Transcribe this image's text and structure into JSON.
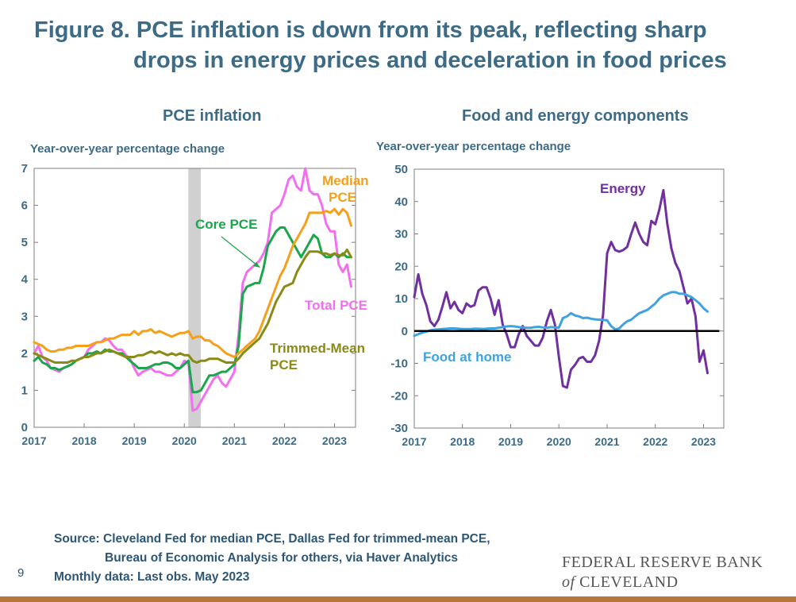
{
  "title": {
    "line1": "Figure 8. PCE inflation is down from its peak, reflecting sharp",
    "line2": "drops in energy prices and deceleration in food prices"
  },
  "footer": {
    "source1": "Source: Cleveland Fed for median PCE, Dallas Fed for trimmed-mean PCE,",
    "source2": "Bureau of Economic Analysis for others, via Haver Analytics",
    "note": "Monthly data: Last obs. May 2023",
    "page": "9",
    "logo_line1": "FEDERAL RESERVE BANK",
    "logo_of": "of",
    "logo_line2": "CLEVELAND"
  },
  "colors": {
    "total": "#f36ef0",
    "core": "#1aa64a",
    "median": "#f5a01a",
    "trimmed": "#8a8a16",
    "energy": "#7030a0",
    "food": "#3fa3e0",
    "recession": "#d0d0d0",
    "text": "#3d6b86",
    "accent_bar": "#b8773a"
  },
  "chart_data": [
    {
      "type": "line",
      "title": "PCE inflation",
      "ylabel": "Year-over-year percentage change",
      "xlim": [
        2017.0,
        2023.42
      ],
      "ylim": [
        0,
        7
      ],
      "yticks": [
        0,
        1,
        2,
        3,
        4,
        5,
        6,
        7
      ],
      "xticks": [
        "2017",
        "2018",
        "2019",
        "2020",
        "2021",
        "2022",
        "2023"
      ],
      "recession_shading": [
        2020.08,
        2020.33
      ],
      "annotations": [
        {
          "text": "Median",
          "series": "median"
        },
        {
          "text": "PCE",
          "series": "median"
        },
        {
          "text": "Core PCE",
          "series": "core"
        },
        {
          "text": "Total PCE",
          "series": "total"
        },
        {
          "text": "Trimmed-Mean",
          "series": "trimmed"
        },
        {
          "text": "PCE",
          "series": "trimmed"
        }
      ],
      "series": [
        {
          "key": "total",
          "x_start": 2017.0,
          "step": 0.0833333,
          "values": [
            2.0,
            2.2,
            1.9,
            1.8,
            1.6,
            1.55,
            1.5,
            1.6,
            1.65,
            1.7,
            1.8,
            1.85,
            1.9,
            2.1,
            2.2,
            2.3,
            2.3,
            2.4,
            2.35,
            2.2,
            2.1,
            2.1,
            1.95,
            1.85,
            1.6,
            1.4,
            1.5,
            1.55,
            1.6,
            1.5,
            1.5,
            1.45,
            1.4,
            1.4,
            1.5,
            1.6,
            1.8,
            1.75,
            0.45,
            0.5,
            0.7,
            0.9,
            1.1,
            1.3,
            1.4,
            1.2,
            1.1,
            1.3,
            1.5,
            2.5,
            3.9,
            4.2,
            4.3,
            4.4,
            4.5,
            4.7,
            5.0,
            5.8,
            5.9,
            6.0,
            6.3,
            6.7,
            6.8,
            6.5,
            6.4,
            7.0,
            6.4,
            6.3,
            6.3,
            6.0,
            5.5,
            5.3,
            5.3,
            4.4,
            4.2,
            4.4,
            3.8
          ]
        },
        {
          "key": "core",
          "x_start": 2017.0,
          "step": 0.0833333,
          "values": [
            1.8,
            1.9,
            1.75,
            1.7,
            1.6,
            1.6,
            1.55,
            1.6,
            1.65,
            1.7,
            1.8,
            1.85,
            1.9,
            2.0,
            2.0,
            2.05,
            2.0,
            2.1,
            2.05,
            2.05,
            2.0,
            2.0,
            1.9,
            1.8,
            1.7,
            1.6,
            1.6,
            1.6,
            1.65,
            1.7,
            1.7,
            1.75,
            1.75,
            1.7,
            1.6,
            1.6,
            1.7,
            1.8,
            0.95,
            0.95,
            1.0,
            1.2,
            1.4,
            1.4,
            1.45,
            1.5,
            1.5,
            1.6,
            1.7,
            2.2,
            3.6,
            3.8,
            3.85,
            3.9,
            3.9,
            4.3,
            4.9,
            5.1,
            5.3,
            5.4,
            5.4,
            5.2,
            5.0,
            4.8,
            4.6,
            4.8,
            5.0,
            5.2,
            5.1,
            4.7,
            4.6,
            4.6,
            4.7,
            4.6,
            4.7,
            4.6,
            4.6
          ]
        },
        {
          "key": "median",
          "x_start": 2017.0,
          "step": 0.0833333,
          "values": [
            2.3,
            2.25,
            2.2,
            2.1,
            2.05,
            2.05,
            2.1,
            2.1,
            2.15,
            2.15,
            2.2,
            2.2,
            2.2,
            2.2,
            2.25,
            2.3,
            2.3,
            2.35,
            2.4,
            2.4,
            2.45,
            2.5,
            2.5,
            2.5,
            2.6,
            2.5,
            2.6,
            2.6,
            2.65,
            2.55,
            2.6,
            2.55,
            2.5,
            2.45,
            2.5,
            2.55,
            2.55,
            2.6,
            2.4,
            2.45,
            2.45,
            2.35,
            2.35,
            2.25,
            2.2,
            2.1,
            2.0,
            1.95,
            1.9,
            2.0,
            2.1,
            2.2,
            2.3,
            2.4,
            2.6,
            2.9,
            3.2,
            3.5,
            3.8,
            4.1,
            4.3,
            4.6,
            4.9,
            5.1,
            5.3,
            5.5,
            5.8,
            5.8,
            5.8,
            5.8,
            5.85,
            5.8,
            5.9,
            5.75,
            5.9,
            5.8,
            5.45
          ]
        },
        {
          "key": "trimmed",
          "x_start": 2017.0,
          "step": 0.0833333,
          "values": [
            2.0,
            1.95,
            1.9,
            1.85,
            1.8,
            1.75,
            1.75,
            1.75,
            1.75,
            1.8,
            1.8,
            1.85,
            1.9,
            1.9,
            1.95,
            2.0,
            2.0,
            2.05,
            2.1,
            2.05,
            2.0,
            1.95,
            1.9,
            1.9,
            1.9,
            1.95,
            1.95,
            2.0,
            2.05,
            2.0,
            2.05,
            2.0,
            1.95,
            2.0,
            1.95,
            2.0,
            1.95,
            1.95,
            1.8,
            1.75,
            1.8,
            1.8,
            1.85,
            1.85,
            1.85,
            1.8,
            1.75,
            1.75,
            1.75,
            1.85,
            2.0,
            2.1,
            2.2,
            2.3,
            2.4,
            2.6,
            2.8,
            3.1,
            3.4,
            3.6,
            3.8,
            3.85,
            3.9,
            4.2,
            4.4,
            4.6,
            4.75,
            4.75,
            4.75,
            4.7,
            4.7,
            4.65,
            4.7,
            4.65,
            4.65,
            4.8,
            4.6
          ]
        }
      ]
    },
    {
      "type": "line",
      "title": "Food and energy components",
      "ylabel": "Year-over-year percentage change",
      "xlim": [
        2017.0,
        2023.42
      ],
      "ylim": [
        -30,
        50
      ],
      "yticks": [
        -30,
        -20,
        -10,
        0,
        10,
        20,
        30,
        40,
        50
      ],
      "xticks": [
        "2017",
        "2018",
        "2019",
        "2020",
        "2021",
        "2022",
        "2023"
      ],
      "annotations": [
        {
          "text": "Energy",
          "series": "energy"
        },
        {
          "text": "Food at home",
          "series": "food"
        }
      ],
      "series": [
        {
          "key": "energy",
          "x_start": 2017.0,
          "step": 0.0833333,
          "values": [
            10.5,
            17.5,
            11.5,
            8.0,
            3.0,
            1.5,
            3.5,
            7.5,
            12.0,
            7.0,
            9.0,
            6.5,
            5.5,
            8.5,
            7.5,
            8.0,
            12.5,
            13.5,
            13.5,
            10.0,
            5.0,
            9.5,
            2.0,
            -1.0,
            -5.0,
            -5.0,
            -1.0,
            1.5,
            -1.5,
            -3.0,
            -4.5,
            -4.5,
            -2.0,
            3.0,
            6.5,
            2.0,
            -8.0,
            -17.0,
            -17.5,
            -12.0,
            -10.5,
            -8.5,
            -8.0,
            -9.5,
            -9.5,
            -7.5,
            -3.0,
            5.0,
            24.0,
            27.5,
            25.0,
            24.5,
            25.0,
            26.0,
            30.0,
            33.5,
            30.0,
            27.5,
            26.5,
            34.0,
            33.0,
            37.5,
            43.5,
            33.0,
            25.5,
            21.0,
            18.5,
            13.5,
            8.5,
            10.0,
            4.5,
            -9.5,
            -6.0,
            -13.0
          ]
        },
        {
          "key": "food",
          "x_start": 2017.0,
          "step": 0.0833333,
          "values": [
            -1.5,
            -1.0,
            -0.5,
            -0.2,
            0.2,
            0.4,
            0.5,
            0.6,
            0.7,
            0.8,
            0.8,
            0.7,
            0.6,
            0.6,
            0.6,
            0.7,
            0.7,
            0.6,
            0.7,
            0.8,
            0.8,
            1.0,
            1.2,
            1.4,
            1.5,
            1.4,
            1.2,
            1.1,
            1.0,
            1.0,
            1.2,
            1.3,
            1.1,
            1.0,
            1.2,
            1.1,
            1.0,
            4.0,
            4.5,
            5.5,
            4.8,
            4.5,
            4.0,
            4.1,
            3.8,
            3.6,
            3.5,
            3.4,
            3.3,
            1.5,
            0.5,
            0.8,
            2.0,
            3.0,
            3.5,
            4.5,
            5.5,
            6.0,
            6.5,
            7.5,
            8.5,
            10.0,
            11.0,
            11.5,
            12.0,
            12.0,
            11.5,
            11.5,
            11.0,
            10.5,
            9.5,
            8.5,
            7.0,
            6.0
          ]
        },
        {
          "key": "zero_line",
          "values": [
            0,
            0
          ]
        }
      ]
    }
  ]
}
